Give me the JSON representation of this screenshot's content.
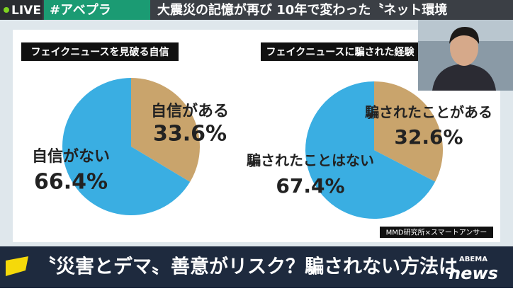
{
  "header": {
    "live": "LIVE",
    "tag": "#アベプラ",
    "headline": "大震災の記憶が再び 10年で変わった〝ネット環境"
  },
  "chart_data": [
    {
      "type": "pie",
      "title": "フェイクニュースを見破る自信",
      "categories": [
        "自信がある",
        "自信がない"
      ],
      "values": [
        33.6,
        66.4
      ],
      "value_labels": [
        "33.6%",
        "66.4%"
      ],
      "colors": [
        "#c9a46c",
        "#3aaee2"
      ]
    },
    {
      "type": "pie",
      "title": "フェイクニュースに騙された経験",
      "categories": [
        "騙されたことがある",
        "騙されたことはない"
      ],
      "values": [
        32.6,
        67.4
      ],
      "value_labels": [
        "32.6%",
        "67.4%"
      ],
      "colors": [
        "#c9a46c",
        "#3aaee2"
      ]
    }
  ],
  "source": "MMD研究所×スマートアンサー",
  "footer": {
    "caption": "〝災害とデマ〟善意がリスク？騙されない方法は",
    "brand_top": "ABEMA",
    "brand_bottom": "news"
  }
}
